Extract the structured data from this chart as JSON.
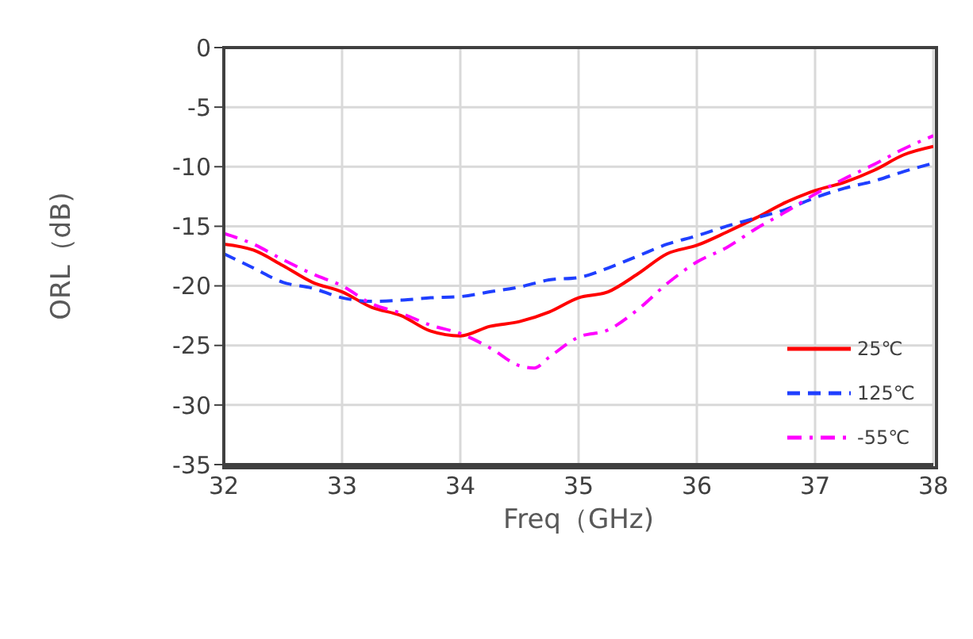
{
  "chart_data": {
    "type": "line",
    "xlabel": "Freq（GHz)",
    "ylabel": "ORL（dB)",
    "xlim": [
      32,
      38
    ],
    "xticks": [
      32,
      33,
      34,
      35,
      36,
      37,
      38
    ],
    "ylim": [
      -35,
      0
    ],
    "yticks": [
      -35,
      -30,
      -25,
      -20,
      -15,
      -10,
      -5,
      0
    ],
    "grid": true,
    "legend": "bottom right",
    "x": [
      32,
      32.25,
      32.5,
      32.75,
      33,
      33.25,
      33.5,
      33.75,
      34,
      34.25,
      34.5,
      34.75,
      35,
      35.25,
      35.5,
      35.75,
      36,
      36.25,
      36.5,
      36.75,
      37,
      37.25,
      37.5,
      37.75,
      38
    ],
    "series": [
      {
        "name": "25℃",
        "color": "#ff0000",
        "line_style": "solid",
        "values": [
          -16.5,
          -17,
          -18.3,
          -19.7,
          -20.5,
          -21.8,
          -22.5,
          -23.8,
          -24.2,
          -23.4,
          -23,
          -22.2,
          -21,
          -20.5,
          -19,
          -17.3,
          -16.6,
          -15.5,
          -14.3,
          -13,
          -12,
          -11.3,
          -10.3,
          -9,
          -8.3
        ]
      },
      {
        "name": "125℃",
        "color": "#1f3fff",
        "line_style": "dashed",
        "values": [
          -17.3,
          -18.5,
          -19.7,
          -20.2,
          -21,
          -21.3,
          -21.2,
          -21,
          -20.9,
          -20.5,
          -20.1,
          -19.5,
          -19.3,
          -18.5,
          -17.5,
          -16.5,
          -15.8,
          -15,
          -14.3,
          -13.6,
          -12.6,
          -11.8,
          -11.2,
          -10.4,
          -9.7
        ]
      },
      {
        "name": "-55℃",
        "color": "#ff00ff",
        "line_style": "dashdot",
        "x": [
          32,
          32.25,
          32.5,
          32.75,
          33,
          33.25,
          33.5,
          33.75,
          34,
          34.25,
          34.5,
          34.625,
          34.75,
          35,
          35.25,
          35.5,
          35.75,
          36,
          36.25,
          36.5,
          36.75,
          37,
          37.25,
          37.5,
          37.75,
          38
        ],
        "values": [
          -15.6,
          -16.5,
          -17.8,
          -19,
          -20,
          -21.5,
          -22.3,
          -23.3,
          -24,
          -25.2,
          -26.7,
          -26.9,
          -26,
          -24.3,
          -23.7,
          -22,
          -19.8,
          -18,
          -16.8,
          -15.2,
          -13.8,
          -12.3,
          -11,
          -9.8,
          -8.5,
          -7.4
        ]
      }
    ]
  }
}
